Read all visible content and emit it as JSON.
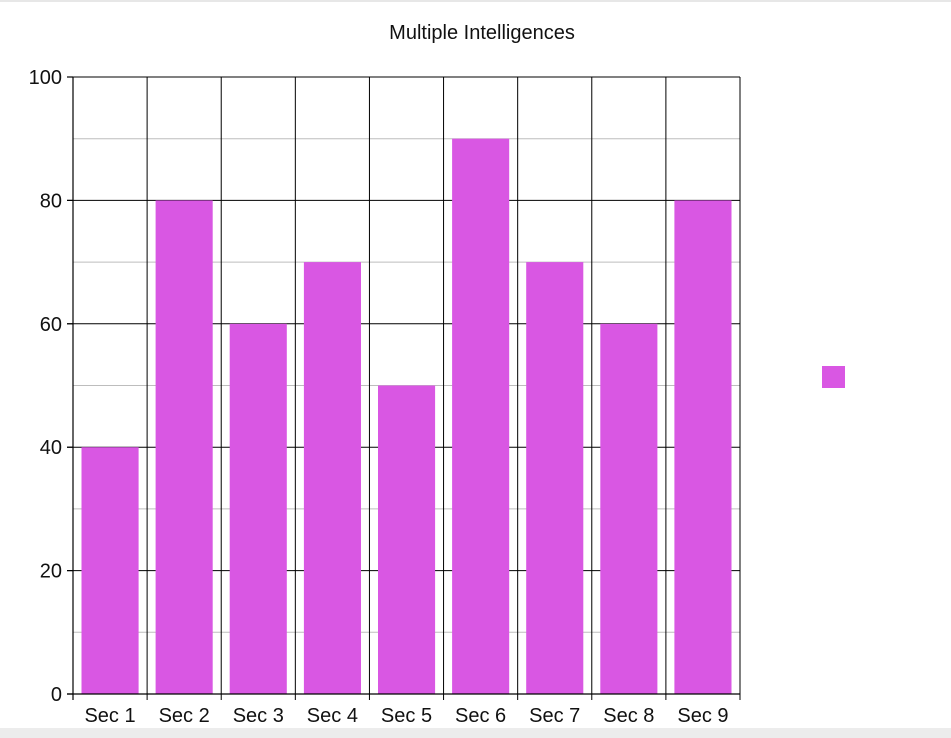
{
  "chart_data": {
    "type": "bar",
    "title": "Multiple Intelligences",
    "xlabel": "",
    "ylabel": "",
    "categories": [
      "Sec 1",
      "Sec 2",
      "Sec 3",
      "Sec 4",
      "Sec 5",
      "Sec 6",
      "Sec 7",
      "Sec 8",
      "Sec 9"
    ],
    "series": [
      {
        "name": "",
        "color": "#d957e3",
        "values": [
          40,
          80,
          60,
          70,
          50,
          90,
          70,
          60,
          80
        ]
      }
    ],
    "ylim": [
      0,
      100
    ],
    "yticks": [
      "0",
      "20",
      "40",
      "60",
      "80",
      "100"
    ],
    "grid": true,
    "legend": "right"
  }
}
